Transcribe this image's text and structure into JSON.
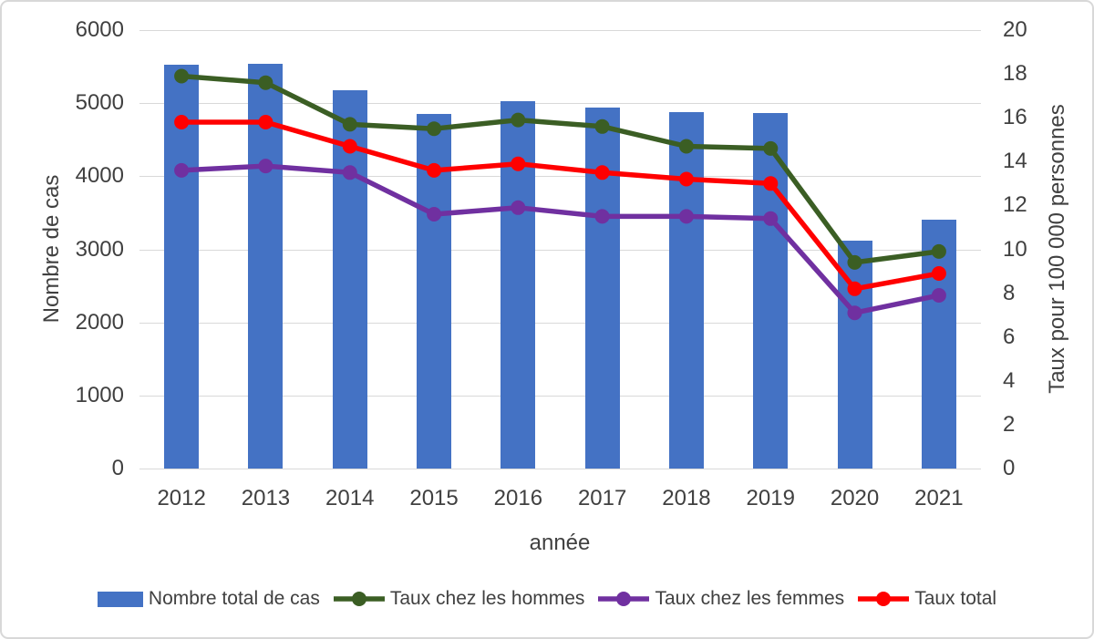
{
  "chart_data": {
    "type": "combo-bar-line",
    "categories": [
      "2012",
      "2013",
      "2014",
      "2015",
      "2016",
      "2017",
      "2018",
      "2019",
      "2020",
      "2021"
    ],
    "series": [
      {
        "name": "Nombre total de cas",
        "type": "bar",
        "axis": "left",
        "color": "#4472c4",
        "values": [
          5520,
          5540,
          5180,
          4850,
          5030,
          4940,
          4880,
          4870,
          3120,
          3400
        ]
      },
      {
        "name": "Taux chez les hommes",
        "type": "line",
        "axis": "right",
        "color": "#3b5e24",
        "values": [
          17.9,
          17.6,
          15.7,
          15.5,
          15.9,
          15.6,
          14.7,
          14.6,
          9.4,
          9.9
        ]
      },
      {
        "name": "Taux chez les femmes",
        "type": "line",
        "axis": "right",
        "color": "#7030a0",
        "values": [
          13.6,
          13.8,
          13.5,
          11.6,
          11.9,
          11.5,
          11.5,
          11.4,
          7.1,
          7.9
        ]
      },
      {
        "name": "Taux total",
        "type": "line",
        "axis": "right",
        "color": "#ff0000",
        "values": [
          15.8,
          15.8,
          14.7,
          13.6,
          13.9,
          13.5,
          13.2,
          13.0,
          8.2,
          8.9
        ]
      }
    ],
    "xlabel": "année",
    "ylabel_left": "Nombre de cas",
    "ylabel_right": "Taux pour 100 000 personnes",
    "ylim_left": [
      0,
      6000
    ],
    "yticks_left": [
      0,
      1000,
      2000,
      3000,
      4000,
      5000,
      6000
    ],
    "ylim_right": [
      0,
      20
    ],
    "yticks_right": [
      0,
      2,
      4,
      6,
      8,
      10,
      12,
      14,
      16,
      18,
      20
    ],
    "grid": true,
    "legend_position": "bottom",
    "colors": {
      "grid": "#d9d9d9",
      "text": "#404040",
      "background": "#ffffff",
      "border": "#d8d8d8"
    }
  }
}
